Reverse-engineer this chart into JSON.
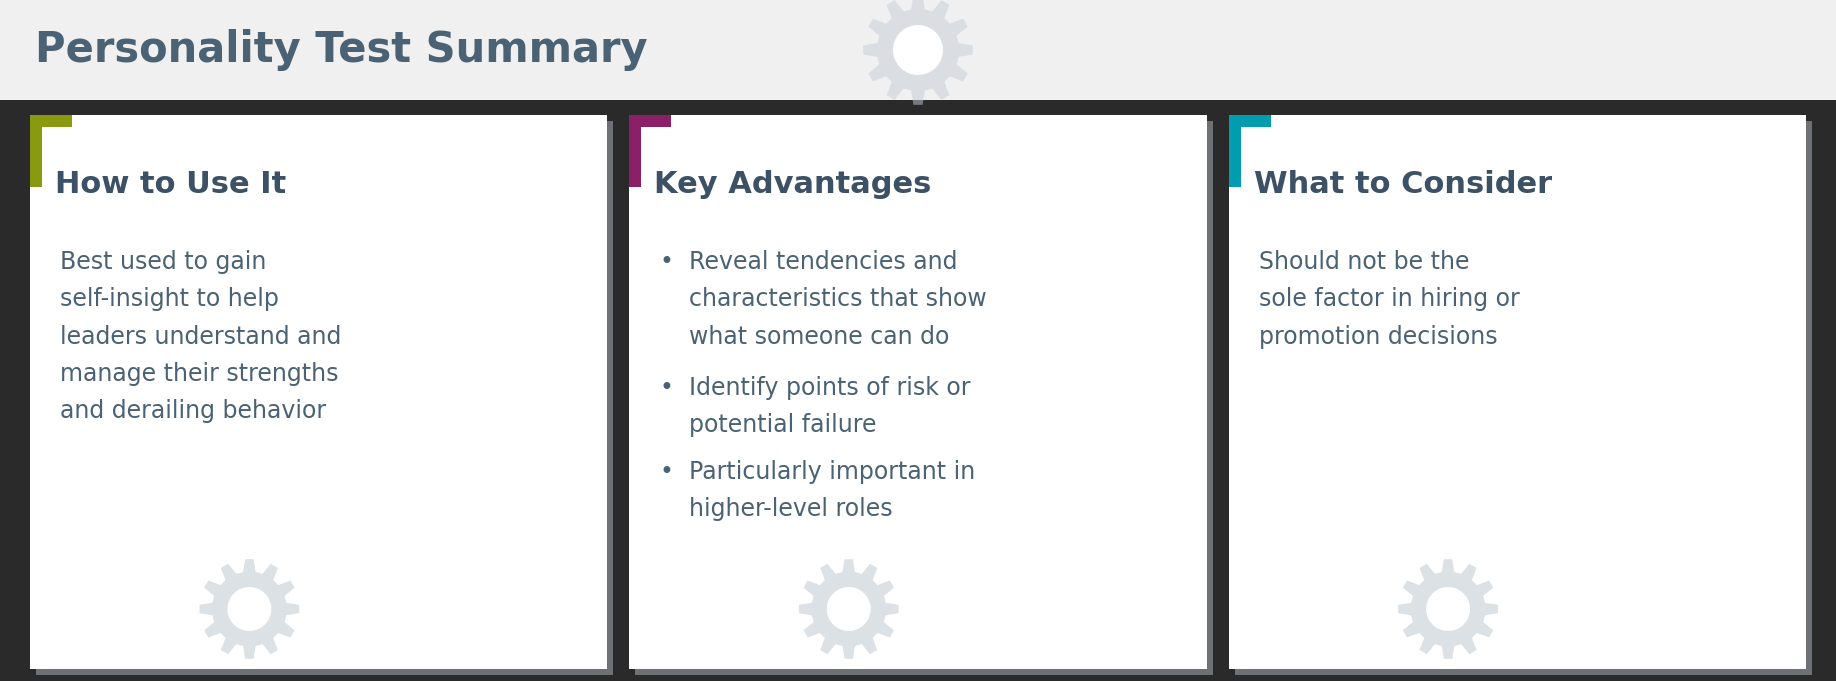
{
  "title": "Personality Test Summary",
  "title_color": "#4a6274",
  "bg_color": "#2a2a2a",
  "card_bg": "#ffffff",
  "accent_colors": [
    "#8a9a10",
    "#8b2068",
    "#009db0"
  ],
  "gear_color": "#c5cdd5",
  "heading_color": "#3d5166",
  "body_color": "#4a6274",
  "cards": [
    {
      "heading": "How to Use It",
      "body": "Best used to gain\nself-insight to help\nleaders understand and\nmanage their strengths\nand derailing behavior",
      "bullets": false,
      "bullet_points": []
    },
    {
      "heading": "Key Advantages",
      "body": "",
      "bullets": true,
      "bullet_points": [
        "Reveal tendencies and\ncharacteristics that show\nwhat someone can do",
        "Identify points of risk or\npotential failure",
        "Particularly important in\nhigher-level roles"
      ]
    },
    {
      "heading": "What to Consider",
      "body": "Should not be the\nsole factor in hiring or\npromotion decisions",
      "bullets": false,
      "bullet_points": []
    }
  ],
  "figsize": [
    18.36,
    6.81
  ],
  "dpi": 100
}
